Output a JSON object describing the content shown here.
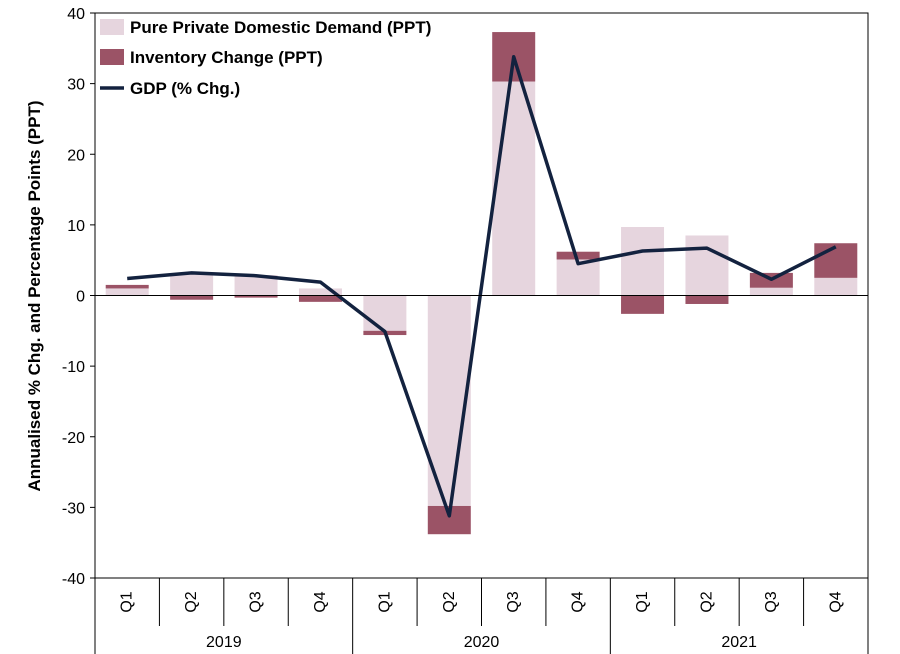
{
  "chart_data": {
    "type": "bar",
    "stacked": true,
    "ylabel": "Annualised % Chg. and Percentage Points (PPT)",
    "ylim": [
      -40,
      40
    ],
    "yticks": [
      -40,
      -30,
      -20,
      -10,
      0,
      10,
      20,
      30,
      40
    ],
    "categories": [
      "Q1",
      "Q2",
      "Q3",
      "Q4",
      "Q1",
      "Q2",
      "Q3",
      "Q4",
      "Q1",
      "Q2",
      "Q3",
      "Q4"
    ],
    "groups": [
      {
        "label": "2019",
        "span": 4
      },
      {
        "label": "2020",
        "span": 4
      },
      {
        "label": "2021",
        "span": 4
      }
    ],
    "legend_position": "top-left",
    "series": [
      {
        "name": "Pure Private Domestic Demand (PPT)",
        "kind": "bar",
        "color": "#e6d5de",
        "values": [
          1.0,
          3.1,
          2.9,
          1.0,
          -5.0,
          -29.8,
          30.3,
          5.1,
          9.7,
          8.5,
          1.1,
          2.5
        ]
      },
      {
        "name": "Inventory Change (PPT)",
        "kind": "bar",
        "color": "#9b5366",
        "values": [
          0.5,
          -0.6,
          -0.3,
          -0.9,
          -0.6,
          -4.0,
          7.0,
          1.1,
          -2.6,
          -1.2,
          2.1,
          4.9
        ]
      },
      {
        "name": "GDP (% Chg.)",
        "kind": "line",
        "color": "#13223f",
        "values": [
          2.4,
          3.2,
          2.8,
          1.9,
          -5.1,
          -31.2,
          33.8,
          4.5,
          6.3,
          6.7,
          2.3,
          6.9
        ]
      }
    ]
  }
}
